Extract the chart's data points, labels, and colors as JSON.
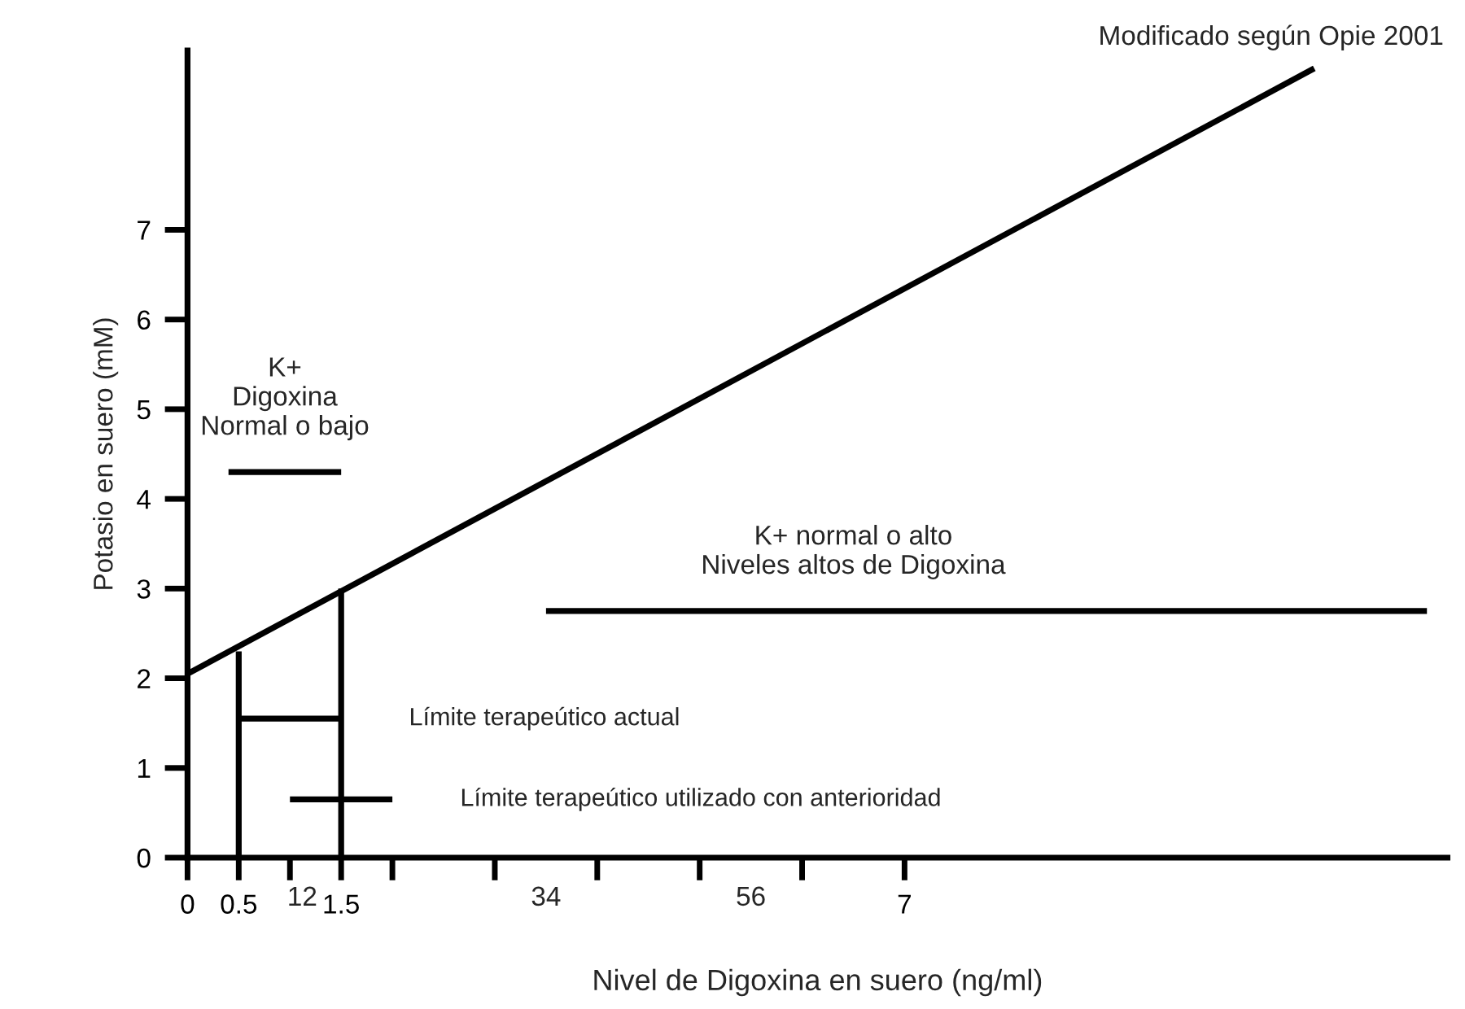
{
  "chart_data": {
    "type": "line",
    "xlabel": "Nivel de Digoxina en suero (ng/ml)",
    "ylabel": "Potasio en suero (mM)",
    "xlim": [
      0,
      12.3
    ],
    "ylim": [
      0,
      9
    ],
    "xticks": [
      0,
      0.5,
      {
        "value": 1,
        "label": null
      },
      1.5,
      {
        "value": 2,
        "label": null
      },
      {
        "value": 3,
        "label": null
      },
      {
        "value": 4,
        "label": null
      },
      {
        "value": 5,
        "label": null
      },
      {
        "value": 6,
        "label": null
      },
      7
    ],
    "yticks": [
      0,
      1,
      2,
      3,
      4,
      5,
      6,
      7
    ],
    "grid": false,
    "legend": false,
    "marker": "none",
    "line_style": "solid",
    "series": [
      {
        "color": "#000000",
        "x": [
          0,
          11
        ],
        "values": [
          2.05,
          8.8
        ]
      },
      {
        "color": "#000000",
        "x": [
          0.4,
          1.5
        ],
        "values": [
          4.3,
          4.3
        ]
      },
      {
        "color": "#000000",
        "x": [
          3.5,
          12.1
        ],
        "values": [
          2.75,
          2.75
        ]
      },
      {
        "color": "#000000",
        "x": [
          0.5,
          0.5
        ],
        "values": [
          0,
          2.3
        ]
      },
      {
        "color": "#000000",
        "x": [
          1.5,
          1.5
        ],
        "values": [
          0,
          3.0
        ]
      },
      {
        "color": "#000000",
        "x": [
          0.5,
          1.5
        ],
        "values": [
          1.55,
          1.55
        ]
      },
      {
        "color": "#000000",
        "x": [
          1.0,
          2.0
        ],
        "values": [
          0.65,
          0.65
        ]
      }
    ],
    "annotations": [
      "Modificado según Opie 2001",
      "12",
      "34",
      "56",
      {
        "text": "K+\nDigoxina\nNormal o bajo",
        "x": 0.95,
        "y": 4.3
      },
      {
        "text": "K+ normal o alto\nNiveles altos de Digoxina",
        "x": 6.5,
        "y": 2.75
      },
      {
        "text": "Límite terapeútico actual",
        "x": 1.5,
        "y": 1.55
      },
      {
        "text": "Límite terapeútico utilizado con anterioridad",
        "x": 2.0,
        "y": 0.65
      }
    ]
  }
}
